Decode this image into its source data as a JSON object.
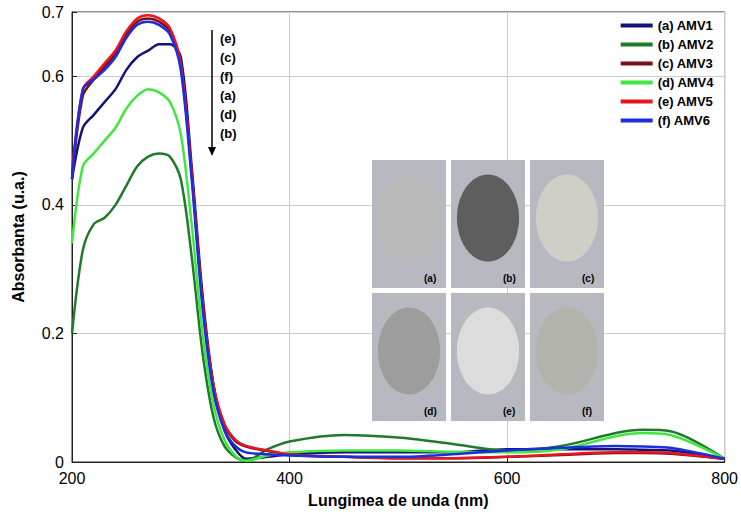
{
  "chart_data": {
    "type": "line",
    "x_label": "Lungimea de unda (nm)",
    "y_label": "Absorbanta (u.a.)",
    "x": [
      200,
      210,
      220,
      230,
      240,
      250,
      260,
      270,
      280,
      290,
      300,
      310,
      320,
      330,
      340,
      350,
      360,
      380,
      400,
      450,
      500,
      550,
      600,
      650,
      700,
      725,
      750,
      800
    ],
    "series": [
      {
        "name": "(a) AMV1",
        "color": "#12127a",
        "values": [
          0.44,
          0.52,
          0.54,
          0.56,
          0.58,
          0.61,
          0.63,
          0.64,
          0.65,
          0.65,
          0.63,
          0.46,
          0.26,
          0.12,
          0.05,
          0.02,
          0.005,
          0.008,
          0.012,
          0.015,
          0.015,
          0.015,
          0.02,
          0.02,
          0.02,
          0.019,
          0.018,
          0.005
        ]
      },
      {
        "name": "(b) AMV2",
        "color": "#1f7a2a",
        "values": [
          0.2,
          0.33,
          0.37,
          0.38,
          0.4,
          0.43,
          0.46,
          0.475,
          0.48,
          0.475,
          0.44,
          0.32,
          0.17,
          0.07,
          0.025,
          0.008,
          0.002,
          0.02,
          0.032,
          0.042,
          0.038,
          0.028,
          0.018,
          0.025,
          0.045,
          0.05,
          0.048,
          0.005
        ]
      },
      {
        "name": "(c) AMV3",
        "color": "#7a0f1a",
        "values": [
          0.44,
          0.57,
          0.595,
          0.615,
          0.635,
          0.665,
          0.685,
          0.69,
          0.685,
          0.67,
          0.615,
          0.45,
          0.25,
          0.12,
          0.058,
          0.033,
          0.024,
          0.017,
          0.011,
          0.008,
          0.006,
          0.006,
          0.008,
          0.011,
          0.014,
          0.014,
          0.013,
          0.005
        ]
      },
      {
        "name": "(d) AMV4",
        "color": "#3ee83e",
        "values": [
          0.34,
          0.46,
          0.48,
          0.5,
          0.52,
          0.55,
          0.57,
          0.58,
          0.575,
          0.56,
          0.51,
          0.37,
          0.2,
          0.09,
          0.035,
          0.01,
          0.002,
          0.01,
          0.015,
          0.018,
          0.018,
          0.016,
          0.015,
          0.02,
          0.04,
          0.045,
          0.042,
          0.005
        ]
      },
      {
        "name": "(e) AMV5",
        "color": "#e8141e",
        "values": [
          0.45,
          0.58,
          0.6,
          0.62,
          0.64,
          0.67,
          0.69,
          0.695,
          0.69,
          0.675,
          0.62,
          0.45,
          0.25,
          0.12,
          0.06,
          0.035,
          0.025,
          0.018,
          0.012,
          0.008,
          0.006,
          0.006,
          0.008,
          0.012,
          0.015,
          0.015,
          0.014,
          0.005
        ]
      },
      {
        "name": "(f) AMV6",
        "color": "#1a2ee0",
        "values": [
          0.44,
          0.58,
          0.595,
          0.61,
          0.63,
          0.66,
          0.68,
          0.685,
          0.68,
          0.665,
          0.61,
          0.44,
          0.24,
          0.11,
          0.05,
          0.025,
          0.015,
          0.012,
          0.01,
          0.008,
          0.008,
          0.012,
          0.018,
          0.022,
          0.025,
          0.024,
          0.022,
          0.005
        ]
      }
    ],
    "xlim": [
      200,
      800
    ],
    "xticks": [
      200,
      400,
      600,
      800
    ],
    "ylim": [
      0,
      0.7
    ],
    "yticks": [
      0,
      0.2,
      0.4,
      0.6,
      0.7
    ],
    "grid": true,
    "legend": "top-right",
    "annotations": {
      "order": [
        "(e)",
        "(c)",
        "(f)",
        "(a)",
        "(d)",
        "(b)"
      ],
      "photos": [
        "(a)",
        "(b)",
        "(c)",
        "(d)",
        "(e)",
        "(f)"
      ]
    }
  }
}
